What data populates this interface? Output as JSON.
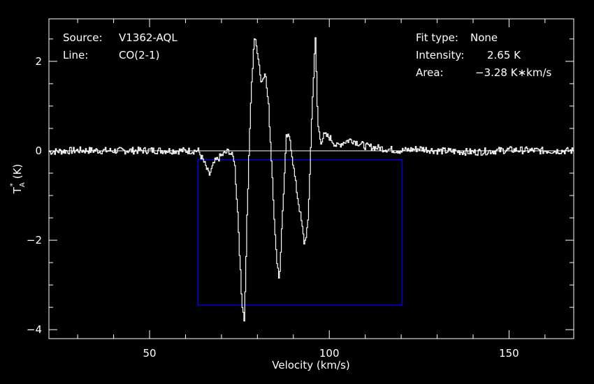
{
  "info": {
    "source_label": "Source:",
    "source_value": "V1362-AQL",
    "line_label": "Line:",
    "line_value": "CO(2-1)",
    "fit_label": "Fit type:",
    "fit_value": "None",
    "intensity_label": "Intensity:",
    "intensity_value": "2.65 K",
    "area_label": "Area:",
    "area_value": "−3.28 K∗km/s"
  },
  "colors": {
    "background": "#000000",
    "axes": "#ffffff",
    "spectrum": "#ffffff",
    "window_box": "#0000ff"
  },
  "chart_data": {
    "type": "line",
    "xlabel": "Velocity (km/s)",
    "ylabel_main": "T",
    "ylabel_sub": "A",
    "ylabel_sup": "*",
    "ylabel_unit": "(K)",
    "xlim": [
      22,
      168
    ],
    "ylim": [
      -4.2,
      2.95
    ],
    "x_ticks": [
      50,
      100,
      150
    ],
    "y_ticks": [
      -4,
      -2,
      0,
      2
    ],
    "y_tick_labels": [
      "−4",
      "−2",
      "0",
      "2"
    ],
    "grid": false,
    "baseline_y": 0,
    "window_box": {
      "x_range": [
        63.5,
        120.3
      ],
      "y_range": [
        -3.45,
        -0.2
      ]
    },
    "series": [
      {
        "x": [
          22,
          30,
          40,
          50,
          60,
          63.5,
          65,
          66.5,
          68,
          70,
          72,
          73.5,
          74.5,
          75.5,
          76.3,
          77,
          78,
          79,
          80,
          81,
          82,
          83,
          84,
          85,
          86,
          87,
          88,
          89,
          90,
          91,
          92,
          93,
          94,
          95,
          96,
          96.7,
          97.5,
          98.5,
          100,
          102,
          104,
          106,
          110,
          115,
          120,
          125,
          130,
          140,
          150,
          160,
          168
        ],
        "y": [
          -0.02,
          0.01,
          0.0,
          0.01,
          0.0,
          0.0,
          -0.25,
          -0.55,
          -0.25,
          -0.1,
          0.0,
          -0.2,
          -1.5,
          -3.3,
          -3.8,
          -1.5,
          1.0,
          2.55,
          2.2,
          1.5,
          1.8,
          1.0,
          -0.5,
          -2.2,
          -2.9,
          -1.2,
          0.35,
          0.25,
          -0.4,
          -1.0,
          -1.5,
          -2.1,
          -1.6,
          0.7,
          2.6,
          0.6,
          0.2,
          0.35,
          0.3,
          0.1,
          0.2,
          0.25,
          0.1,
          0.05,
          0.0,
          0.05,
          0.0,
          -0.03,
          0.02,
          0.0,
          0.0
        ]
      }
    ]
  }
}
